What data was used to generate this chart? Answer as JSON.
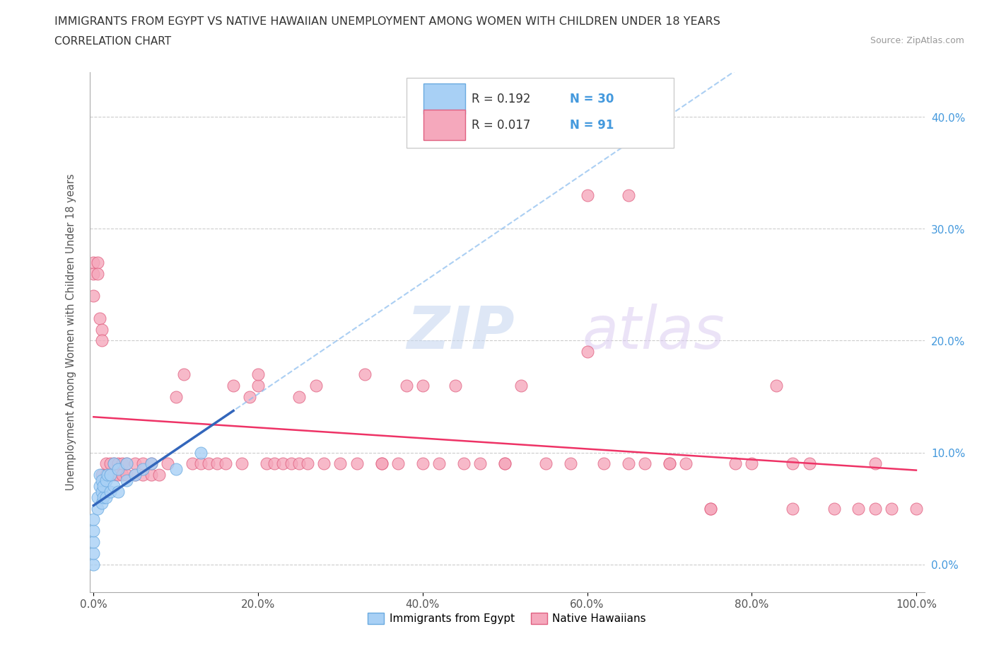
{
  "title_line1": "IMMIGRANTS FROM EGYPT VS NATIVE HAWAIIAN UNEMPLOYMENT AMONG WOMEN WITH CHILDREN UNDER 18 YEARS",
  "title_line2": "CORRELATION CHART",
  "source": "Source: ZipAtlas.com",
  "ylabel": "Unemployment Among Women with Children Under 18 years",
  "egypt_color": "#a8d0f5",
  "hawaii_color": "#f5a8bc",
  "egypt_edge": "#6aaae0",
  "hawaii_edge": "#e06080",
  "trendline_egypt_color": "#3366bb",
  "trendline_hawaii_color": "#ee3366",
  "watermark_zip": "ZIP",
  "watermark_atlas": "atlas",
  "legend_R_egypt": "0.192",
  "legend_N_egypt": "30",
  "legend_R_hawaii": "0.017",
  "legend_N_hawaii": "91",
  "egypt_x": [
    0.0,
    0.0,
    0.0,
    0.0,
    0.0,
    0.005,
    0.005,
    0.007,
    0.007,
    0.01,
    0.01,
    0.01,
    0.012,
    0.012,
    0.015,
    0.015,
    0.017,
    0.02,
    0.02,
    0.025,
    0.025,
    0.03,
    0.03,
    0.04,
    0.04,
    0.05,
    0.06,
    0.07,
    0.1,
    0.13
  ],
  "egypt_y": [
    0.0,
    0.01,
    0.02,
    0.03,
    0.04,
    0.05,
    0.06,
    0.07,
    0.08,
    0.055,
    0.065,
    0.075,
    0.06,
    0.07,
    0.06,
    0.075,
    0.08,
    0.065,
    0.08,
    0.07,
    0.09,
    0.065,
    0.085,
    0.075,
    0.09,
    0.08,
    0.085,
    0.09,
    0.085,
    0.1
  ],
  "hawaii_x": [
    0.0,
    0.0,
    0.0,
    0.005,
    0.005,
    0.007,
    0.01,
    0.01,
    0.01,
    0.015,
    0.015,
    0.02,
    0.02,
    0.025,
    0.025,
    0.03,
    0.03,
    0.035,
    0.035,
    0.04,
    0.04,
    0.05,
    0.05,
    0.06,
    0.06,
    0.07,
    0.07,
    0.08,
    0.09,
    0.1,
    0.11,
    0.12,
    0.13,
    0.14,
    0.15,
    0.16,
    0.17,
    0.18,
    0.19,
    0.2,
    0.21,
    0.22,
    0.23,
    0.24,
    0.25,
    0.26,
    0.27,
    0.28,
    0.3,
    0.32,
    0.33,
    0.35,
    0.37,
    0.38,
    0.4,
    0.42,
    0.44,
    0.45,
    0.47,
    0.5,
    0.52,
    0.55,
    0.58,
    0.6,
    0.62,
    0.65,
    0.67,
    0.7,
    0.72,
    0.75,
    0.78,
    0.8,
    0.83,
    0.85,
    0.87,
    0.9,
    0.93,
    0.95,
    0.97,
    1.0,
    0.2,
    0.25,
    0.35,
    0.4,
    0.5,
    0.6,
    0.65,
    0.7,
    0.75,
    0.85,
    0.95
  ],
  "hawaii_y": [
    0.27,
    0.26,
    0.24,
    0.27,
    0.26,
    0.22,
    0.21,
    0.2,
    0.08,
    0.08,
    0.09,
    0.08,
    0.09,
    0.08,
    0.09,
    0.08,
    0.09,
    0.08,
    0.09,
    0.08,
    0.09,
    0.08,
    0.09,
    0.08,
    0.09,
    0.08,
    0.09,
    0.08,
    0.09,
    0.15,
    0.17,
    0.09,
    0.09,
    0.09,
    0.09,
    0.09,
    0.16,
    0.09,
    0.15,
    0.16,
    0.09,
    0.09,
    0.09,
    0.09,
    0.09,
    0.09,
    0.16,
    0.09,
    0.09,
    0.09,
    0.17,
    0.09,
    0.09,
    0.16,
    0.09,
    0.09,
    0.16,
    0.09,
    0.09,
    0.09,
    0.16,
    0.09,
    0.09,
    0.19,
    0.09,
    0.09,
    0.09,
    0.09,
    0.09,
    0.05,
    0.09,
    0.09,
    0.16,
    0.05,
    0.09,
    0.05,
    0.05,
    0.09,
    0.05,
    0.05,
    0.17,
    0.15,
    0.09,
    0.16,
    0.09,
    0.33,
    0.33,
    0.09,
    0.05,
    0.09,
    0.05
  ],
  "xlim": [
    -0.005,
    1.01
  ],
  "ylim": [
    -0.025,
    0.44
  ],
  "xticks": [
    0.0,
    0.2,
    0.4,
    0.6,
    0.8,
    1.0
  ],
  "yticks": [
    0.0,
    0.1,
    0.2,
    0.3,
    0.4
  ],
  "xtick_labels": [
    "0.0%",
    "20.0%",
    "40.0%",
    "60.0%",
    "80.0%",
    "100.0%"
  ],
  "ytick_labels_right": [
    "0.0%",
    "10.0%",
    "20.0%",
    "30.0%",
    "40.0%"
  ],
  "tick_color": "#4499dd",
  "label_color": "#555555"
}
